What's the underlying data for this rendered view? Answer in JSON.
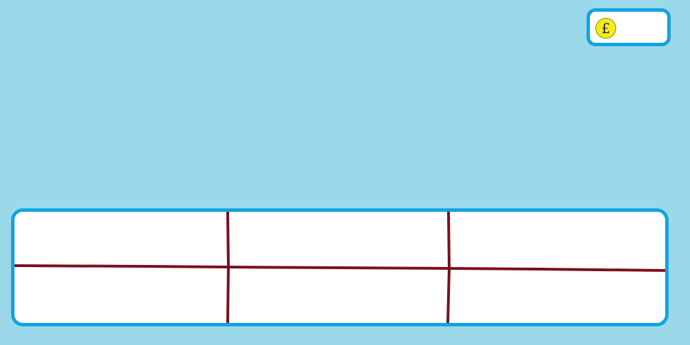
{
  "colors": {
    "background": "#9bd9ea",
    "panel_border": "#13a3e0",
    "panel_fill": "#ffffff",
    "grid_line": "#7a0f1e",
    "coin_fill": "#f5ea1e",
    "coin_symbol": "#1a1a1a"
  },
  "hud": {
    "coin_icon": "pound-coin-icon",
    "coin_symbol": "£",
    "coin_count": ""
  },
  "inventory": {
    "slots": [
      {
        "label": ""
      },
      {
        "label": ""
      },
      {
        "label": ""
      },
      {
        "label": ""
      },
      {
        "label": ""
      },
      {
        "label": ""
      }
    ]
  }
}
